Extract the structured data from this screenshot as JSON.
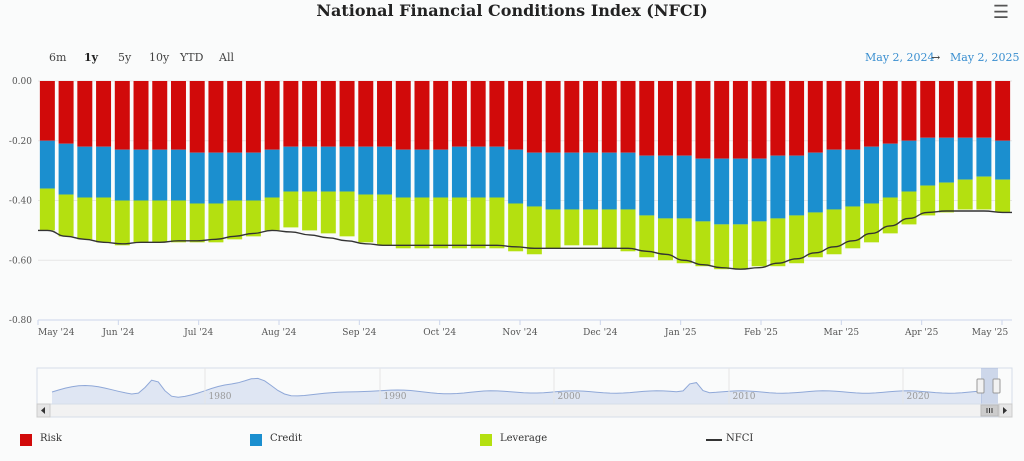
{
  "header": {
    "title": "National Financial Conditions Index (NFCI)",
    "menu_icon": "hamburger-menu-icon"
  },
  "range_selector": {
    "buttons": [
      "6m",
      "1y",
      "5y",
      "10y",
      "YTD",
      "All"
    ],
    "active": "1y",
    "from_date": "May 2, 2024",
    "arrow": "→",
    "to_date": "May 2, 2025"
  },
  "colors": {
    "risk": "#d10a0a",
    "credit": "#1b8fcf",
    "leverage": "#b4e010",
    "nfci": "#333333",
    "navigator_area": "#dfe6f3",
    "navigator_line": "#8fa8d8"
  },
  "chart_data": {
    "type": "bar",
    "title": "National Financial Conditions Index (NFCI)",
    "y_tick_labels": [
      "0.00",
      "-0.20",
      "-0.40",
      "-0.60",
      "-0.80"
    ],
    "ylim": [
      -0.8,
      0
    ],
    "x_tick_labels": [
      "May '24",
      "Jun '24",
      "Jul '24",
      "Aug '24",
      "Sep '24",
      "Oct '24",
      "Nov '24",
      "Dec '24",
      "Jan '25",
      "Feb '25",
      "Mar '25",
      "Apr '25",
      "May '25"
    ],
    "stacked": true,
    "series": [
      {
        "name": "Risk",
        "values": [
          -0.2,
          -0.21,
          -0.22,
          -0.22,
          -0.23,
          -0.23,
          -0.23,
          -0.23,
          -0.24,
          -0.24,
          -0.24,
          -0.24,
          -0.23,
          -0.22,
          -0.22,
          -0.22,
          -0.22,
          -0.22,
          -0.22,
          -0.23,
          -0.23,
          -0.23,
          -0.22,
          -0.22,
          -0.22,
          -0.23,
          -0.24,
          -0.24,
          -0.24,
          -0.24,
          -0.24,
          -0.24,
          -0.25,
          -0.25,
          -0.25,
          -0.26,
          -0.26,
          -0.26,
          -0.26,
          -0.25,
          -0.25,
          -0.24,
          -0.23,
          -0.23,
          -0.22,
          -0.21,
          -0.2,
          -0.19,
          -0.19,
          -0.19,
          -0.19,
          -0.2
        ]
      },
      {
        "name": "Credit",
        "values": [
          -0.16,
          -0.17,
          -0.17,
          -0.17,
          -0.17,
          -0.17,
          -0.17,
          -0.17,
          -0.17,
          -0.17,
          -0.16,
          -0.16,
          -0.16,
          -0.15,
          -0.15,
          -0.15,
          -0.15,
          -0.16,
          -0.16,
          -0.16,
          -0.16,
          -0.16,
          -0.17,
          -0.17,
          -0.17,
          -0.18,
          -0.18,
          -0.19,
          -0.19,
          -0.19,
          -0.19,
          -0.19,
          -0.2,
          -0.21,
          -0.21,
          -0.21,
          -0.22,
          -0.22,
          -0.21,
          -0.21,
          -0.2,
          -0.2,
          -0.2,
          -0.19,
          -0.19,
          -0.18,
          -0.17,
          -0.16,
          -0.15,
          -0.14,
          -0.13,
          -0.13
        ]
      },
      {
        "name": "Leverage",
        "values": [
          -0.14,
          -0.14,
          -0.14,
          -0.15,
          -0.15,
          -0.14,
          -0.14,
          -0.14,
          -0.13,
          -0.13,
          -0.13,
          -0.12,
          -0.11,
          -0.12,
          -0.13,
          -0.14,
          -0.15,
          -0.16,
          -0.17,
          -0.17,
          -0.17,
          -0.17,
          -0.17,
          -0.17,
          -0.17,
          -0.16,
          -0.16,
          -0.13,
          -0.12,
          -0.12,
          -0.13,
          -0.14,
          -0.14,
          -0.14,
          -0.15,
          -0.15,
          -0.15,
          -0.15,
          -0.15,
          -0.16,
          -0.16,
          -0.15,
          -0.15,
          -0.14,
          -0.13,
          -0.12,
          -0.11,
          -0.1,
          -0.1,
          -0.1,
          -0.11,
          -0.11
        ]
      },
      {
        "name": "NFCI",
        "type": "line",
        "values": [
          -0.5,
          -0.52,
          -0.53,
          -0.54,
          -0.545,
          -0.54,
          -0.54,
          -0.535,
          -0.535,
          -0.53,
          -0.52,
          -0.51,
          -0.5,
          -0.505,
          -0.515,
          -0.525,
          -0.535,
          -0.545,
          -0.55,
          -0.55,
          -0.55,
          -0.55,
          -0.55,
          -0.55,
          -0.55,
          -0.555,
          -0.56,
          -0.56,
          -0.56,
          -0.56,
          -0.56,
          -0.56,
          -0.57,
          -0.58,
          -0.6,
          -0.615,
          -0.625,
          -0.63,
          -0.625,
          -0.61,
          -0.595,
          -0.575,
          -0.555,
          -0.535,
          -0.51,
          -0.485,
          -0.46,
          -0.44,
          -0.435,
          -0.435,
          -0.435,
          -0.44
        ]
      }
    ],
    "navigator": {
      "x_tick_labels": [
        "1980",
        "1990",
        "2000",
        "2010",
        "2020"
      ]
    }
  }
}
